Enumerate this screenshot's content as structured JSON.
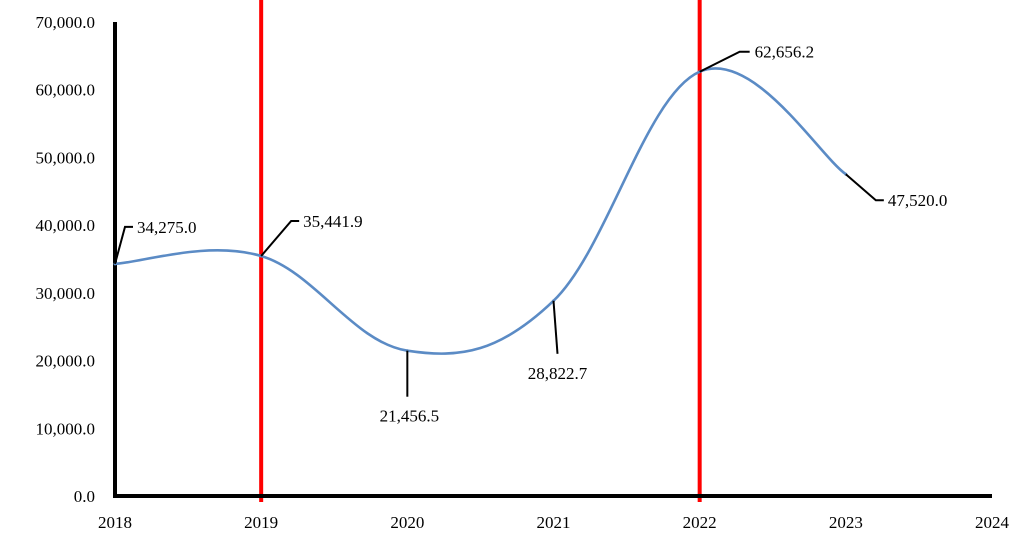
{
  "chart_data": {
    "type": "line",
    "x": [
      2018,
      2019,
      2020,
      2021,
      2022,
      2023
    ],
    "series": [
      {
        "values": [
          34275.0,
          35441.9,
          21456.5,
          28822.7,
          62656.2,
          47520.0
        ],
        "data_labels": [
          "34,275.0",
          "35,441.9",
          "21,456.5",
          "28,822.7",
          "62,656.2",
          "47,520.0"
        ],
        "color": "#5B8BC5",
        "smooth": true
      }
    ],
    "xlim": [
      2018,
      2024
    ],
    "ylim": [
      0,
      70000
    ],
    "x_tick_labels": [
      "2018",
      "2019",
      "2020",
      "2021",
      "2022",
      "2023",
      "2024"
    ],
    "y_tick_labels": [
      "0.0",
      "10,000.0",
      "20,000.0",
      "30,000.0",
      "40,000.0",
      "50,000.0",
      "60,000.0",
      "70,000.0"
    ],
    "reference_lines": [
      {
        "x": 2019,
        "color": "#FF0000"
      },
      {
        "x": 2022,
        "color": "#FF0000"
      }
    ],
    "axis_color": "#000000",
    "grid": false,
    "legend": "none"
  }
}
